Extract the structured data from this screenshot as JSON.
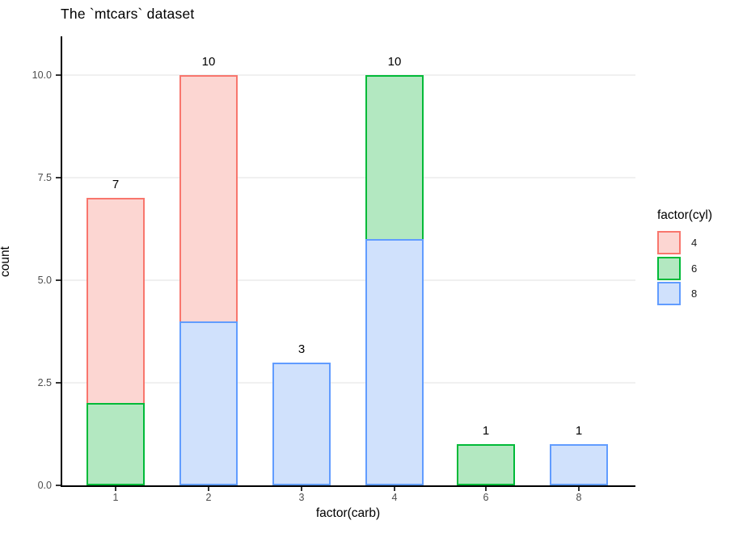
{
  "chart_data": {
    "type": "bar",
    "stacked": true,
    "title": "The `mtcars` dataset",
    "xlabel": "factor(carb)",
    "ylabel": "count",
    "categories": [
      "1",
      "2",
      "3",
      "4",
      "6",
      "8"
    ],
    "series": [
      {
        "name": "4",
        "stroke": "#F8766D",
        "fill": "#FCD6D2",
        "values": [
          5,
          6,
          0,
          0,
          0,
          0
        ]
      },
      {
        "name": "6",
        "stroke": "#00BA38",
        "fill": "#B3E8C1",
        "values": [
          2,
          0,
          0,
          4,
          1,
          0
        ]
      },
      {
        "name": "8",
        "stroke": "#619CFF",
        "fill": "#D0E1FC",
        "values": [
          0,
          4,
          3,
          6,
          0,
          1
        ]
      }
    ],
    "stack_bottom_to_top": [
      "8",
      "6",
      "4"
    ],
    "bar_totals": [
      7,
      10,
      3,
      10,
      1,
      1
    ],
    "y_ticks": [
      {
        "label": "0.0",
        "value": 0
      },
      {
        "label": "2.5",
        "value": 2.5
      },
      {
        "label": "5.0",
        "value": 5
      },
      {
        "label": "7.5",
        "value": 7.5
      },
      {
        "label": "10.0",
        "value": 10
      }
    ],
    "ylim": [
      0,
      10.95
    ],
    "grid": "major-horizontal-only",
    "legend": {
      "title": "factor(cyl)",
      "position": "right",
      "entries": [
        "4",
        "6",
        "8"
      ]
    },
    "colors": {
      "axis": "#000000",
      "tick_label": "#4D4D4D",
      "gridline": "#F0F0F0",
      "background": "#FFFFFF"
    }
  }
}
